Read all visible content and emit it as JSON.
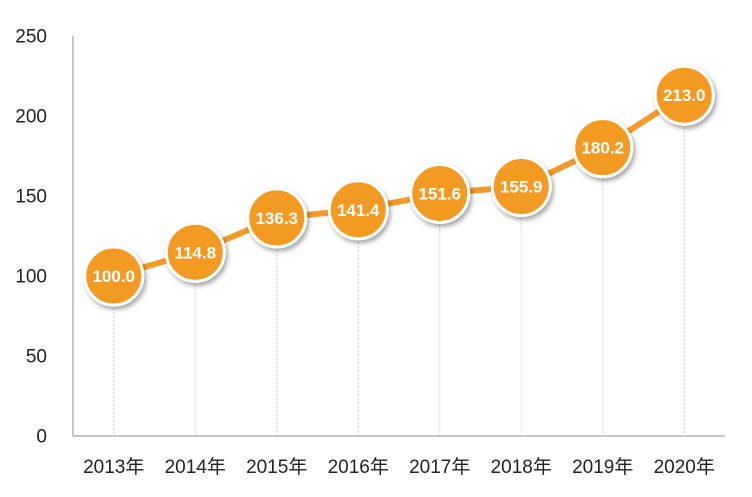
{
  "chart_data": {
    "type": "line",
    "title": "",
    "xlabel": "",
    "ylabel": "",
    "categories": [
      "2013年",
      "2014年",
      "2015年",
      "2016年",
      "2017年",
      "2018年",
      "2019年",
      "2020年"
    ],
    "series": [
      {
        "values": [
          100.0,
          114.8,
          136.3,
          141.4,
          151.6,
          155.9,
          180.2,
          213.0
        ],
        "labels": [
          "100.0",
          "114.8",
          "136.3",
          "141.4",
          "151.6",
          "155.9",
          "180.2",
          "213.0"
        ]
      }
    ],
    "ylim": [
      0,
      250
    ],
    "yticks": [
      0,
      50,
      100,
      150,
      200,
      250
    ],
    "ytick_labels": [
      "0",
      "50",
      "100",
      "150",
      "200",
      "250"
    ],
    "grid": false,
    "legend": "none",
    "colors": {
      "line": "#F39A28",
      "marker": "#F29A24",
      "marker_border": "#ffffff",
      "axis": "#8c8c8c",
      "guide": "#c8c8c8",
      "label": "#ffffff",
      "tick": "#222222"
    }
  }
}
